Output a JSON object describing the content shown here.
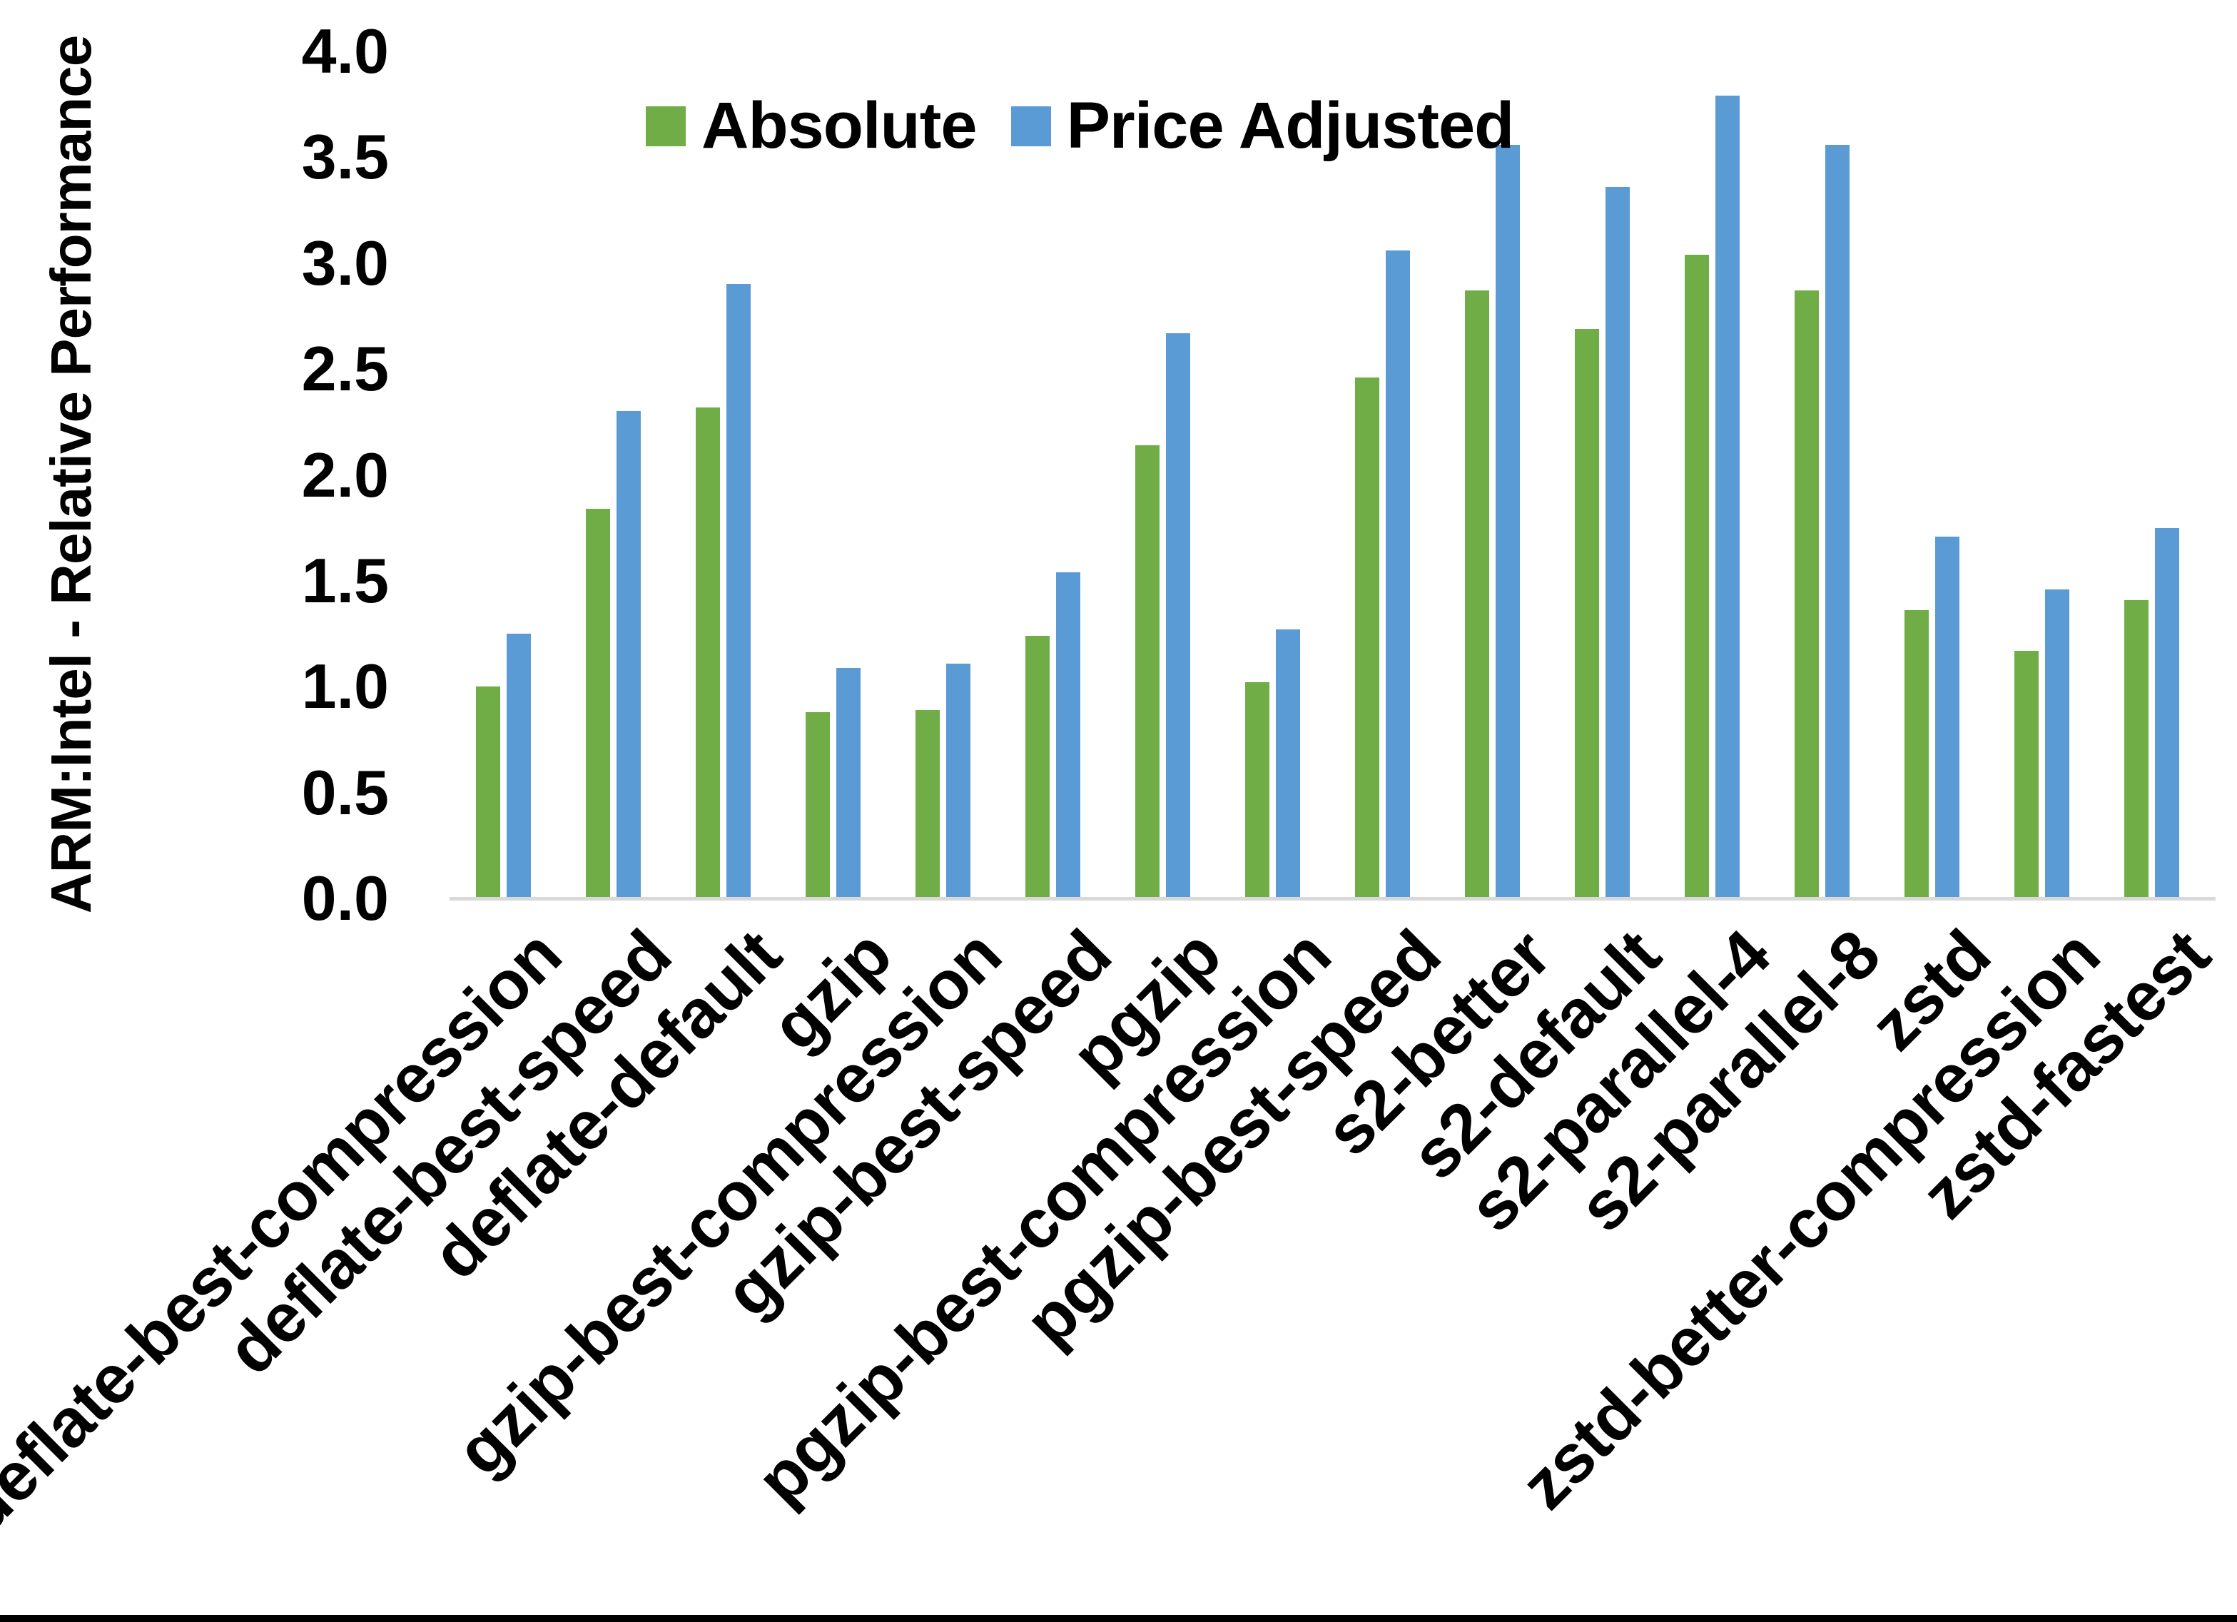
{
  "figure": {
    "background": "#FFFFFF",
    "bottom_border_color": "#000000",
    "axis_line_color": "#D9D9D9"
  },
  "chart_data": {
    "type": "bar",
    "title": "",
    "xlabel": "",
    "ylabel": "ARM:Intel - Relative Performance",
    "ylim": [
      0.0,
      4.0
    ],
    "ytick_step": 0.5,
    "ytick_labels": [
      "0.0",
      "0.5",
      "1.0",
      "1.5",
      "2.0",
      "2.5",
      "3.0",
      "3.5",
      "4.0"
    ],
    "grid": false,
    "legend_position": "top-inside",
    "x_label_rotation_deg": 45,
    "categories": [
      "deflate-best-compression",
      "deflate-best-speed",
      "deflate-default",
      "gzip",
      "gzip-best-compression",
      "gzip-best-speed",
      "pgzip",
      "pgzip-best-compression",
      "pgzip-best-speed",
      "s2-better",
      "s2-default",
      "s2-parallel-4",
      "s2-parallel-8",
      "zstd",
      "zstd-better-compression",
      "zstd-fastest"
    ],
    "series": [
      {
        "name": "Absolute",
        "color": "#70AD47",
        "values": [
          1.0,
          1.84,
          2.32,
          0.88,
          0.89,
          1.24,
          2.14,
          1.02,
          2.46,
          2.87,
          2.69,
          3.04,
          2.87,
          1.36,
          1.17,
          1.41
        ]
      },
      {
        "name": "Price Adjusted",
        "color": "#5B9BD5",
        "values": [
          1.25,
          2.3,
          2.9,
          1.09,
          1.11,
          1.54,
          2.67,
          1.27,
          3.06,
          3.56,
          3.36,
          3.79,
          3.56,
          1.71,
          1.46,
          1.75
        ]
      }
    ]
  }
}
